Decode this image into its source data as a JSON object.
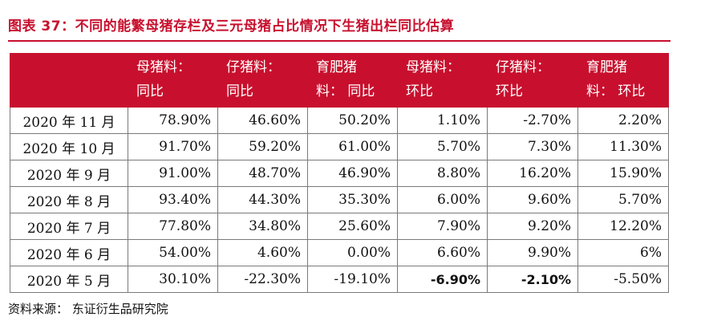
{
  "title": "图表 37：不同的能繁母猪存栏及三元母猪占比情况下生猪出栏同比估算",
  "columns": [
    {
      "line1": "",
      "line2": ""
    },
    {
      "line1": "母猪料：",
      "line2": "同比"
    },
    {
      "line1": "仔猪料：",
      "line2": "同比"
    },
    {
      "line1": "育肥猪",
      "line2": "料： 同比"
    },
    {
      "line1": "母猪料：",
      "line2": "环比"
    },
    {
      "line1": "仔猪料：",
      "line2": "环比"
    },
    {
      "line1": "育肥猪",
      "line2": "料： 环比"
    }
  ],
  "rows": [
    {
      "date": "2020 年 11 月",
      "values": [
        "78.90%",
        "46.60%",
        "50.20%",
        "1.10%",
        "-2.70%",
        "2.20%"
      ]
    },
    {
      "date": "2020 年 10 月",
      "values": [
        "91.70%",
        "59.20%",
        "61.00%",
        "5.70%",
        "7.30%",
        "11.30%"
      ]
    },
    {
      "date": "2020 年 9 月",
      "values": [
        "91.00%",
        "48.70%",
        "46.90%",
        "8.80%",
        "16.20%",
        "15.90%"
      ]
    },
    {
      "date": "2020 年 8 月",
      "values": [
        "93.40%",
        "44.30%",
        "35.30%",
        "6.00%",
        "9.60%",
        "5.70%"
      ]
    },
    {
      "date": "2020 年 7 月",
      "values": [
        "77.80%",
        "34.80%",
        "25.60%",
        "7.90%",
        "9.20%",
        "12.20%"
      ]
    },
    {
      "date": "2020 年 6 月",
      "values": [
        "54.00%",
        "4.60%",
        "0.00%",
        "6.60%",
        "9.90%",
        "6%"
      ]
    },
    {
      "date": "2020 年 5 月",
      "values": [
        "30.10%",
        "-22.30%",
        "-19.10%",
        "-6.90%",
        "-2.10%",
        "-5.50%"
      ]
    }
  ],
  "source": "资料来源： 东证衍生品研究院"
}
